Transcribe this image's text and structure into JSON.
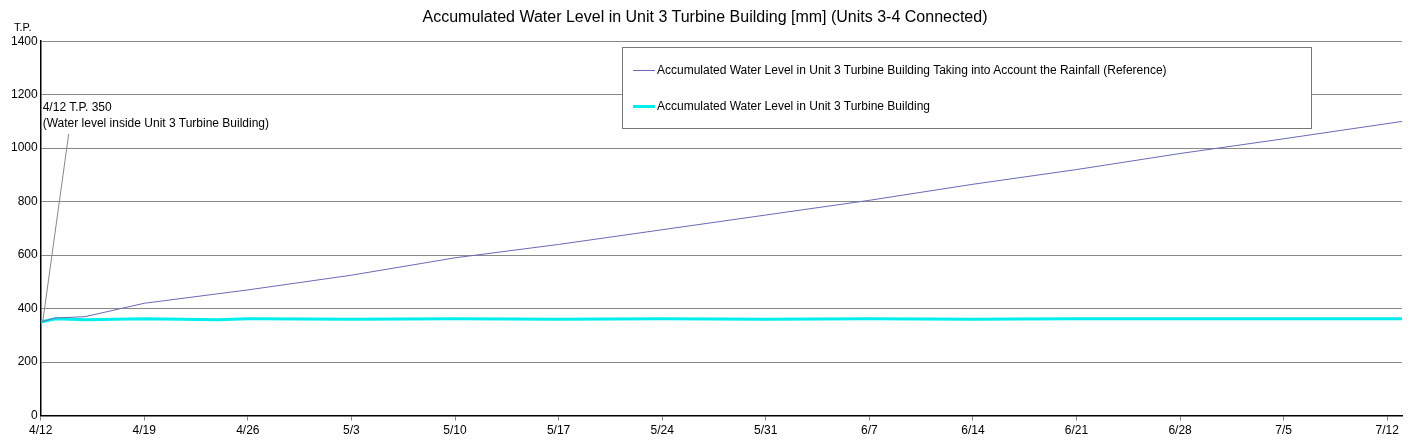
{
  "chart_data": {
    "type": "line",
    "title": "Accumulated Water Level in Unit 3 Turbine Building [mm] (Units 3-4 Connected)",
    "ylabel": "T.P.",
    "xlim": [
      "--04-12",
      "--07-13"
    ],
    "xticks": [
      {
        "value": "--04-12",
        "label": "4/12"
      },
      {
        "value": "--04-19",
        "label": "4/19"
      },
      {
        "value": "--04-26",
        "label": "4/26"
      },
      {
        "value": "--05-03",
        "label": "5/3"
      },
      {
        "value": "--05-10",
        "label": "5/10"
      },
      {
        "value": "--05-17",
        "label": "5/17"
      },
      {
        "value": "--05-24",
        "label": "5/24"
      },
      {
        "value": "--05-31",
        "label": "5/31"
      },
      {
        "value": "--06-07",
        "label": "6/7"
      },
      {
        "value": "--06-14",
        "label": "6/14"
      },
      {
        "value": "--06-21",
        "label": "6/21"
      },
      {
        "value": "--06-28",
        "label": "6/28"
      },
      {
        "value": "--07-05",
        "label": "7/5"
      },
      {
        "value": "--07-12",
        "label": "7/12"
      }
    ],
    "ylim": [
      0,
      1400
    ],
    "yticks": [
      0,
      200,
      400,
      600,
      800,
      1000,
      1200,
      1400
    ],
    "grid": "y",
    "legend": "top right",
    "marker": "none",
    "series": [
      {
        "name": "Accumulated Water Level in Unit 3 Turbine Building Taking into Account the Rainfall (Reference)",
        "color": "#6a6ab4",
        "line_style": "solid",
        "x": [
          "--04-12",
          "--04-13",
          "--04-15",
          "--04-19",
          "--04-26",
          "--05-03",
          "--05-10",
          "--05-17",
          "--05-24",
          "--05-31",
          "--06-07",
          "--06-14",
          "--06-21",
          "--06-28",
          "--07-05",
          "--07-13"
        ],
        "values": [
          350,
          365,
          370,
          420,
          470,
          525,
          590,
          640,
          695,
          750,
          805,
          865,
          920,
          980,
          1035,
          1100
        ]
      },
      {
        "name": "Accumulated Water Level in Unit 3 Turbine Building",
        "color": "#00eeee",
        "line_style": "solid",
        "x": [
          "--04-12",
          "--04-13",
          "--04-15",
          "--04-19",
          "--04-24",
          "--04-26",
          "--05-03",
          "--05-10",
          "--05-17",
          "--05-24",
          "--05-31",
          "--06-07",
          "--06-14",
          "--06-21",
          "--06-28",
          "--07-05",
          "--07-13"
        ],
        "values": [
          350,
          362,
          358,
          362,
          358,
          362,
          360,
          362,
          360,
          362,
          360,
          362,
          360,
          362,
          362,
          362,
          362
        ]
      }
    ],
    "annotations": [
      {
        "text": "4/12 T.P. 350\n(Water level inside Unit 3 Turbine Building)",
        "x": "--04-12",
        "y": 350
      }
    ]
  }
}
